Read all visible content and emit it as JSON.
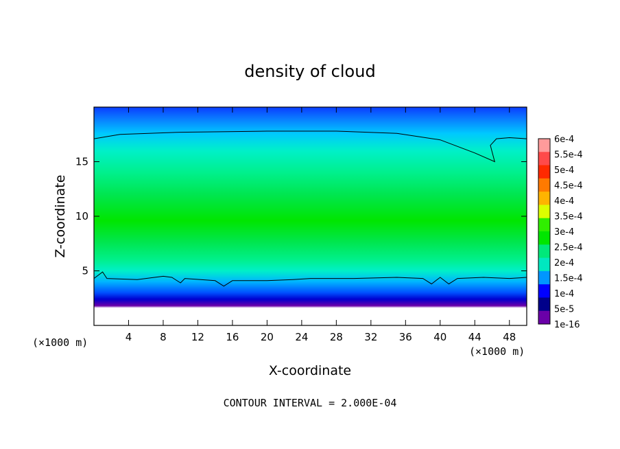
{
  "chart_data": {
    "type": "heatmap",
    "title": "density of cloud",
    "xlabel": "X-coordinate",
    "ylabel": "Z-coordinate",
    "x_unit_label_left": "(×1000 m)",
    "x_unit_label_right": "(×1000 m)",
    "footer": "CONTOUR INTERVAL = 2.000E-04",
    "xlim": [
      0,
      50
    ],
    "ylim": [
      0,
      20
    ],
    "x_ticks": [
      4,
      8,
      12,
      16,
      20,
      24,
      28,
      32,
      36,
      40,
      44,
      48
    ],
    "y_ticks": [
      5,
      10,
      15
    ],
    "colorbar": {
      "labels": [
        "6e-4",
        "5.5e-4",
        "5e-4",
        "4.5e-4",
        "4e-4",
        "3.5e-4",
        "3e-4",
        "2.5e-4",
        "2e-4",
        "1.5e-4",
        "1e-4",
        "5e-5",
        "1e-16"
      ],
      "colors": [
        "#ff9b9b",
        "#ff4a4a",
        "#ff2a00",
        "#ff7a00",
        "#ffb400",
        "#dcff00",
        "#30ee00",
        "#00e600",
        "#00e87a",
        "#00e8c0",
        "#0096ff",
        "#0000ff",
        "#00008a",
        "#6a00a8"
      ]
    },
    "levels": [
      {
        "zmin": 0.0,
        "zmax": 1.4,
        "label": "empty"
      },
      {
        "zmin": 1.4,
        "zmax": 1.9,
        "label": "1e-16"
      },
      {
        "zmin": 1.9,
        "zmax": 2.4,
        "label": "5e-5"
      },
      {
        "zmin": 2.4,
        "zmax": 3.2,
        "label": "1e-4"
      },
      {
        "zmin": 3.2,
        "zmax": 4.2,
        "label": "1.5e-4"
      },
      {
        "zmin": 4.2,
        "zmax": 6.5,
        "label": "2e-4"
      },
      {
        "zmin": 6.5,
        "zmax": 13.5,
        "label": "2.5e-4"
      },
      {
        "zmin": 13.5,
        "zmax": 17.6,
        "label": "2e-4"
      },
      {
        "zmin": 17.6,
        "zmax": 19.0,
        "label": "1.5e-4"
      },
      {
        "zmin": 19.0,
        "zmax": 20.0,
        "label": "1e-4"
      }
    ],
    "contour_lines": [
      {
        "name": "lower",
        "points": [
          [
            0,
            4.3
          ],
          [
            1,
            4.9
          ],
          [
            1.5,
            4.3
          ],
          [
            5,
            4.2
          ],
          [
            8,
            4.5
          ],
          [
            9,
            4.4
          ],
          [
            10,
            3.9
          ],
          [
            10.5,
            4.3
          ],
          [
            14,
            4.1
          ],
          [
            15,
            3.6
          ],
          [
            16,
            4.1
          ],
          [
            20,
            4.1
          ],
          [
            23,
            4.2
          ],
          [
            25,
            4.3
          ],
          [
            30,
            4.3
          ],
          [
            35,
            4.4
          ],
          [
            38,
            4.3
          ],
          [
            39,
            3.8
          ],
          [
            40,
            4.4
          ],
          [
            41,
            3.8
          ],
          [
            42,
            4.3
          ],
          [
            45,
            4.4
          ],
          [
            48,
            4.3
          ],
          [
            50,
            4.4
          ]
        ]
      },
      {
        "name": "upper",
        "points": [
          [
            0,
            17.1
          ],
          [
            3,
            17.5
          ],
          [
            10,
            17.7
          ],
          [
            20,
            17.8
          ],
          [
            28,
            17.8
          ],
          [
            35,
            17.6
          ],
          [
            40,
            17.0
          ],
          [
            44,
            15.8
          ],
          [
            46.3,
            15.0
          ],
          [
            45.8,
            16.5
          ],
          [
            46.5,
            17.1
          ],
          [
            48,
            17.2
          ],
          [
            50,
            17.1
          ]
        ]
      }
    ]
  }
}
